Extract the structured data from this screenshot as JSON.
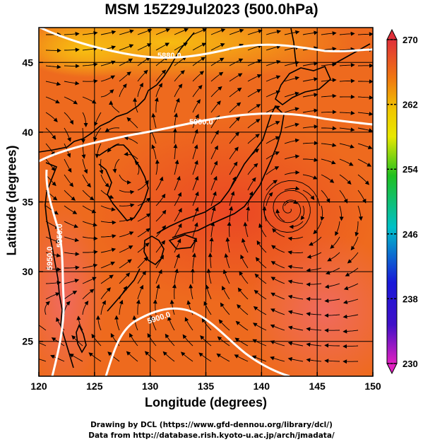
{
  "header": {
    "title": "MSM 15Z29Jul2023 (500.0hPa)"
  },
  "axes": {
    "xlabel": "Longitude (degrees)",
    "ylabel": "Latitude  (degrees)",
    "xticks": [
      "120",
      "125",
      "130",
      "135",
      "140",
      "145",
      "150"
    ],
    "yticks": [
      "25",
      "30",
      "35",
      "40",
      "45"
    ]
  },
  "colorbar": {
    "ticks": [
      "270",
      "262",
      "254",
      "246",
      "238",
      "230"
    ],
    "colors": {
      "top": "#e0303a",
      "orange": "#f07810",
      "yellow": "#f0e000",
      "green": "#20c020",
      "cyan": "#00c0c8",
      "blue": "#1818d8",
      "magenta": "#e020c0"
    }
  },
  "contours": {
    "labels": [
      "5880.0",
      "5900.0",
      "5950.0",
      "5950.0",
      "5900.0"
    ]
  },
  "map": {
    "circulation_center": {
      "lon": 142.5,
      "lat": 34.5
    }
  },
  "credits": {
    "line1": "Drawing by DCL (https://www.gfd-dennou.org/library/dcl/)",
    "line2": "Data from http://database.rish.kyoto-u.ac.jp/arch/jmadata/"
  },
  "chart_data": {
    "type": "map",
    "title": "MSM 15Z29Jul2023 (500.0hPa)",
    "xlabel": "Longitude (degrees)",
    "ylabel": "Latitude  (degrees)",
    "xlim": [
      120,
      150
    ],
    "ylim": [
      22.5,
      47.5
    ],
    "xticks": [
      120,
      125,
      130,
      135,
      140,
      145,
      150
    ],
    "yticks": [
      25,
      30,
      35,
      40,
      45
    ],
    "colorbar_range": [
      230,
      270
    ],
    "colorbar_ticks": [
      230,
      238,
      246,
      254,
      262,
      270
    ],
    "contour_levels": [
      5880,
      5900,
      5950
    ],
    "grid": true
  }
}
